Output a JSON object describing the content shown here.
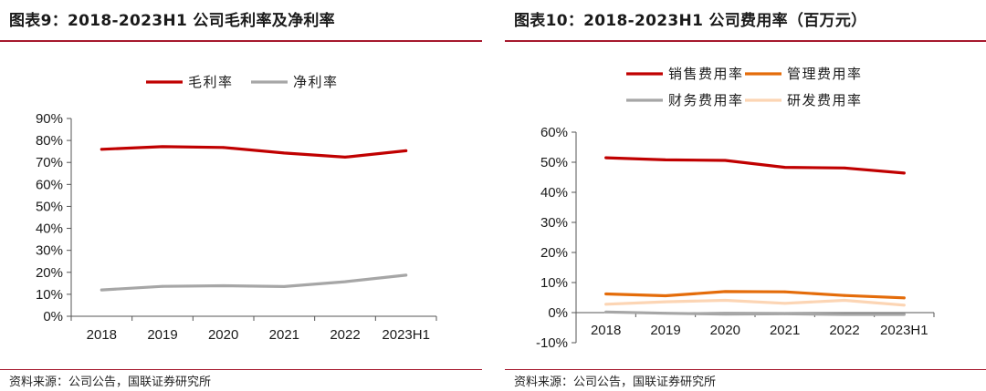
{
  "left": {
    "title": "图表9：2018-2023H1 公司毛利率及净利率",
    "source": "资料来源：公司公告，国联证券研究所",
    "chart_data": {
      "type": "line",
      "title": "图表9：2018-2023H1 公司毛利率及净利率",
      "xlabel": "",
      "ylabel": "",
      "categories": [
        "2018",
        "2019",
        "2020",
        "2021",
        "2022",
        "2023H1"
      ],
      "series": [
        {
          "name": "毛利率",
          "color": "#c00000",
          "values": [
            76.0,
            77.2,
            76.8,
            74.3,
            72.4,
            75.3
          ]
        },
        {
          "name": "净利率",
          "color": "#a6a6a6",
          "values": [
            12.0,
            13.6,
            13.9,
            13.5,
            15.7,
            18.7
          ]
        }
      ],
      "ylim": [
        0,
        90
      ],
      "yticks": [
        0,
        10,
        20,
        30,
        40,
        50,
        60,
        70,
        80,
        90
      ],
      "ytick_labels": [
        "0%",
        "10%",
        "20%",
        "30%",
        "40%",
        "50%",
        "60%",
        "70%",
        "80%",
        "90%"
      ],
      "legend": "top-center",
      "grid": false
    }
  },
  "right": {
    "title": "图表10：2018-2023H1 公司费用率（百万元）",
    "source": "资料来源：公司公告，国联证券研究所",
    "chart_data": {
      "type": "line",
      "title": "图表10：2018-2023H1 公司费用率（百万元）",
      "xlabel": "",
      "ylabel": "",
      "categories": [
        "2018",
        "2019",
        "2020",
        "2021",
        "2022",
        "2023H1"
      ],
      "series": [
        {
          "name": "销售费用率",
          "color": "#c00000",
          "values": [
            51.5,
            50.8,
            50.6,
            48.3,
            48.1,
            46.4
          ]
        },
        {
          "name": "管理费用率",
          "color": "#e46c0a",
          "values": [
            6.2,
            5.6,
            7.0,
            6.9,
            5.7,
            4.9
          ]
        },
        {
          "name": "财务费用率",
          "color": "#a6a6a6",
          "values": [
            0.2,
            -0.2,
            -0.5,
            -0.4,
            -0.6,
            -0.6
          ]
        },
        {
          "name": "研发费用率",
          "color": "#fcd5b4",
          "values": [
            2.8,
            3.6,
            4.1,
            3.1,
            4.1,
            2.5
          ]
        }
      ],
      "ylim": [
        -10,
        60
      ],
      "yticks": [
        -10,
        0,
        10,
        20,
        30,
        40,
        50,
        60
      ],
      "ytick_labels": [
        "-10%",
        "0%",
        "10%",
        "20%",
        "30%",
        "40%",
        "50%",
        "60%"
      ],
      "legend": "top",
      "grid": false
    }
  }
}
